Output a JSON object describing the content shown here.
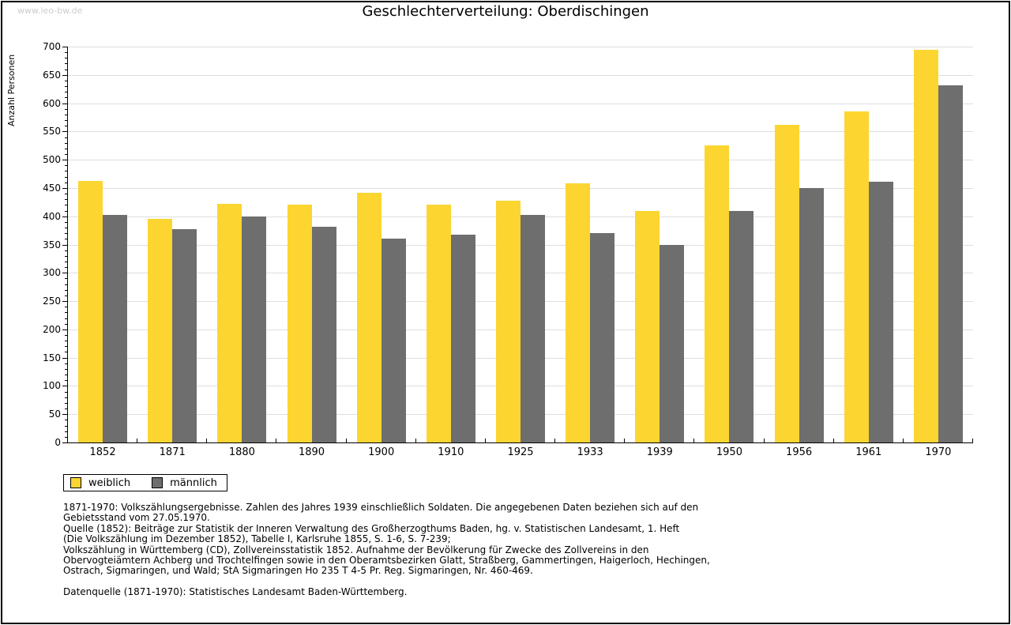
{
  "watermark": "www.leo-bw.de",
  "chart_data": {
    "type": "bar",
    "title": "Geschlechterverteilung: Oberdischingen",
    "ylabel": "Anzahl Personen",
    "xlabel": "",
    "ylim": [
      0,
      700
    ],
    "ytick_step": 50,
    "ytick_minor_step": 10,
    "grid": true,
    "legend_position": "bottom-left",
    "categories": [
      "1852",
      "1871",
      "1880",
      "1890",
      "1900",
      "1910",
      "1925",
      "1933",
      "1939",
      "1950",
      "1956",
      "1961",
      "1970"
    ],
    "series": [
      {
        "name": "weiblich",
        "color": "#FCD531",
        "values": [
          462,
          396,
          422,
          421,
          441,
          420,
          428,
          459,
          409,
          525,
          562,
          586,
          694
        ]
      },
      {
        "name": "männlich",
        "color": "#6E6E6E",
        "values": [
          403,
          377,
          399,
          382,
          361,
          368,
          402,
          370,
          349,
          409,
          450,
          461,
          632
        ]
      }
    ]
  },
  "footer": {
    "lines": [
      "1871-1970: Volkszählungsergebnisse. Zahlen des Jahres 1939 einschließlich Soldaten. Die angegebenen Daten beziehen sich auf den",
      "Gebietsstand vom 27.05.1970.",
      "Quelle (1852): Beiträge zur Statistik der Inneren Verwaltung des Großherzogthums Baden, hg. v. Statistischen Landesamt, 1. Heft",
      "(Die Volkszählung im Dezember 1852), Tabelle I, Karlsruhe 1855, S. 1-6, S. 7-239;",
      "Volkszählung in Württemberg (CD), Zollvereinsstatistik 1852. Aufnahme der Bevölkerung für Zwecke des Zollvereins in den",
      "Obervogteiämtern Achberg und Trochtelfingen sowie in den Oberamtsbezirken Glatt, Straßberg, Gammertingen, Haigerloch, Hechingen,",
      "Ostrach, Sigmaringen, und Wald; StA Sigmaringen Ho 235 T 4-5 Pr. Reg. Sigmaringen, Nr. 460-469."
    ],
    "datenquelle": "Datenquelle (1871-1970): Statistisches Landesamt Baden-Württemberg."
  }
}
